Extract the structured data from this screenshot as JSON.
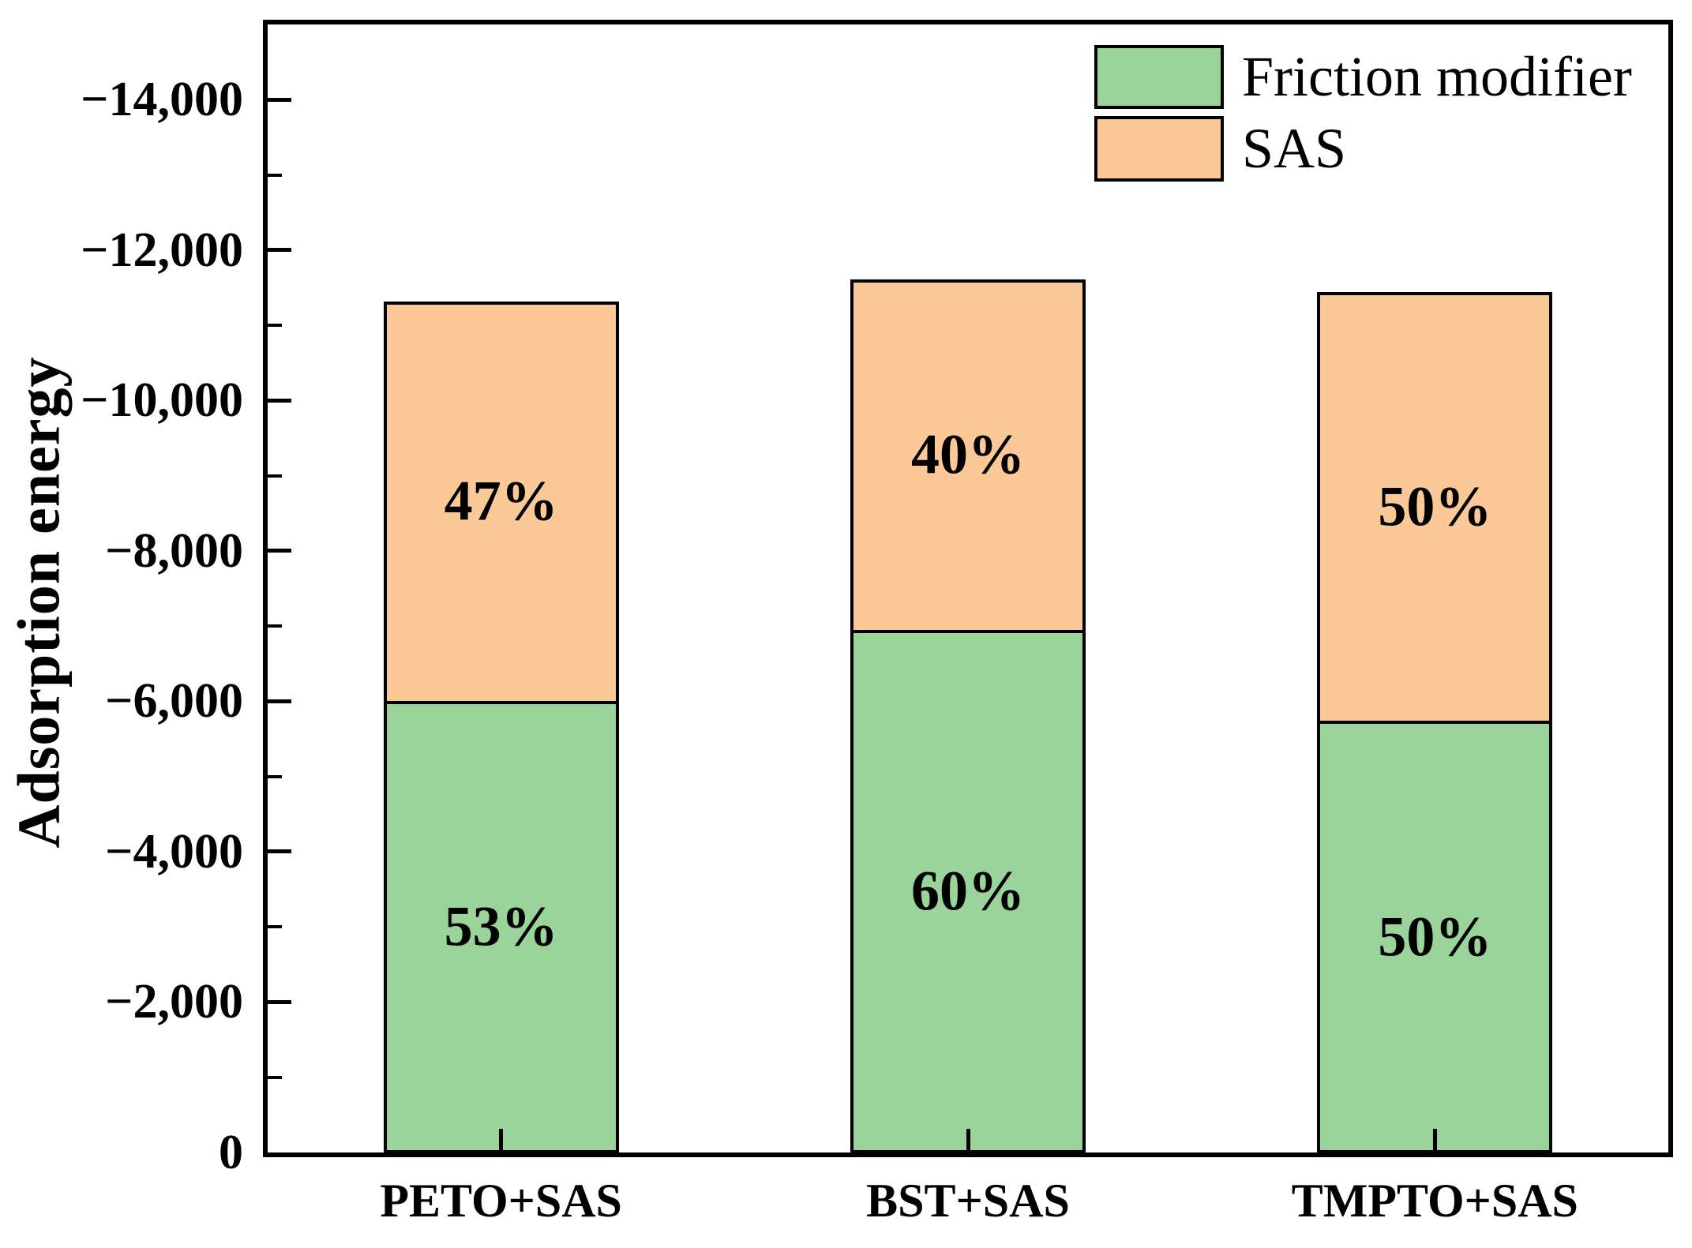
{
  "figure": {
    "background": "#ffffff",
    "axis_color": "#000000"
  },
  "chart_data": {
    "type": "bar",
    "stacked": true,
    "title": "",
    "xlabel": "",
    "ylabel": "Adsorption energy",
    "categories": [
      "PETO+SAS",
      "BST+SAS",
      "TMPTO+SAS"
    ],
    "series": [
      {
        "name": "Friction modifier",
        "color": "#9ad49b",
        "values": [
          -6000,
          -6950,
          -5740
        ],
        "segment_labels": [
          "53%",
          "60%",
          "50%"
        ]
      },
      {
        "name": "SAS",
        "color": "#fbc997",
        "values": [
          -5320,
          -4660,
          -5700
        ],
        "segment_labels": [
          "47%",
          "40%",
          "50%"
        ]
      }
    ],
    "totals": [
      -11320,
      -11610,
      -11440
    ],
    "ylim": [
      0,
      -15000
    ],
    "yticks": [
      {
        "value": 0,
        "label": "0"
      },
      {
        "value": -2000,
        "label": "−2,000"
      },
      {
        "value": -4000,
        "label": "−4,000"
      },
      {
        "value": -6000,
        "label": "−6,000"
      },
      {
        "value": -8000,
        "label": "−8,000"
      },
      {
        "value": -10000,
        "label": "−10,000"
      },
      {
        "value": -12000,
        "label": "−12,000"
      },
      {
        "value": -14000,
        "label": "−14,000"
      }
    ],
    "yminorticks": [
      -1000,
      -3000,
      -5000,
      -7000,
      -9000,
      -11000,
      -13000
    ],
    "grid": false,
    "legend_position": "top-right",
    "bar_outline_color": "#000000"
  }
}
